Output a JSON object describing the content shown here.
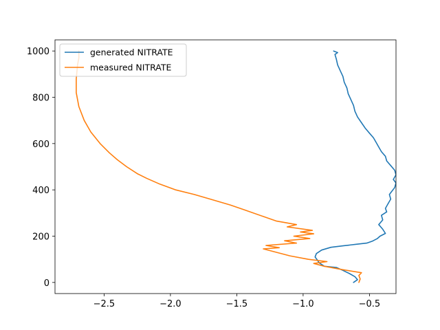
{
  "chart_data": {
    "type": "line",
    "title": "",
    "xlabel": "",
    "ylabel": "",
    "xlim": [
      -2.87,
      -0.3
    ],
    "ylim": [
      1048,
      -48
    ],
    "y_inverted": true,
    "grid": false,
    "legend": "top-left",
    "x_ticks": [
      -2.5,
      -2.0,
      -1.5,
      -1.0,
      -0.5
    ],
    "x_tick_labels": [
      "−2.5",
      "−2.0",
      "−1.5",
      "−1.0",
      "−0.5"
    ],
    "y_ticks": [
      0,
      200,
      400,
      600,
      800,
      1000
    ],
    "y_tick_labels": [
      "0",
      "200",
      "400",
      "600",
      "800",
      "1000"
    ],
    "series": [
      {
        "name": "generated NITRATE",
        "color": "#1f77b4",
        "points": [
          [
            -0.62,
            0
          ],
          [
            -0.59,
            12
          ],
          [
            -0.61,
            25
          ],
          [
            -0.65,
            38
          ],
          [
            -0.7,
            52
          ],
          [
            -0.75,
            65
          ],
          [
            -0.84,
            70
          ],
          [
            -0.88,
            85
          ],
          [
            -0.89,
            95
          ],
          [
            -0.91,
            110
          ],
          [
            -0.9,
            125
          ],
          [
            -0.86,
            140
          ],
          [
            -0.79,
            152
          ],
          [
            -0.7,
            158
          ],
          [
            -0.6,
            165
          ],
          [
            -0.52,
            170
          ],
          [
            -0.48,
            178
          ],
          [
            -0.44,
            190
          ],
          [
            -0.42,
            200
          ],
          [
            -0.38,
            212
          ],
          [
            -0.4,
            230
          ],
          [
            -0.43,
            250
          ],
          [
            -0.4,
            270
          ],
          [
            -0.41,
            290
          ],
          [
            -0.37,
            305
          ],
          [
            -0.38,
            320
          ],
          [
            -0.36,
            340
          ],
          [
            -0.34,
            360
          ],
          [
            -0.35,
            380
          ],
          [
            -0.33,
            395
          ],
          [
            -0.31,
            410
          ],
          [
            -0.3,
            430
          ],
          [
            -0.32,
            445
          ],
          [
            -0.3,
            465
          ],
          [
            -0.31,
            485
          ],
          [
            -0.34,
            505
          ],
          [
            -0.37,
            525
          ],
          [
            -0.38,
            545
          ],
          [
            -0.41,
            565
          ],
          [
            -0.43,
            585
          ],
          [
            -0.45,
            605
          ],
          [
            -0.47,
            625
          ],
          [
            -0.5,
            645
          ],
          [
            -0.53,
            665
          ],
          [
            -0.56,
            690
          ],
          [
            -0.59,
            715
          ],
          [
            -0.61,
            740
          ],
          [
            -0.62,
            765
          ],
          [
            -0.64,
            790
          ],
          [
            -0.66,
            815
          ],
          [
            -0.67,
            840
          ],
          [
            -0.69,
            865
          ],
          [
            -0.7,
            890
          ],
          [
            -0.72,
            915
          ],
          [
            -0.74,
            940
          ],
          [
            -0.75,
            965
          ],
          [
            -0.76,
            985
          ],
          [
            -0.74,
            993
          ],
          [
            -0.77,
            1000
          ]
        ]
      },
      {
        "name": "measured NITRATE",
        "color": "#ff7f0e",
        "points": [
          [
            -0.58,
            0
          ],
          [
            -0.57,
            15
          ],
          [
            -0.58,
            30
          ],
          [
            -0.56,
            42
          ],
          [
            -0.7,
            55
          ],
          [
            -0.84,
            70
          ],
          [
            -0.92,
            82
          ],
          [
            -0.82,
            90
          ],
          [
            -0.96,
            100
          ],
          [
            -1.1,
            115
          ],
          [
            -1.3,
            145
          ],
          [
            -1.18,
            150
          ],
          [
            -1.28,
            160
          ],
          [
            -1.05,
            170
          ],
          [
            -1.14,
            180
          ],
          [
            -0.95,
            190
          ],
          [
            -1.07,
            200
          ],
          [
            -0.92,
            210
          ],
          [
            -1.02,
            218
          ],
          [
            -0.93,
            225
          ],
          [
            -1.12,
            240
          ],
          [
            -1.05,
            250
          ],
          [
            -1.2,
            265
          ],
          [
            -1.3,
            285
          ],
          [
            -1.45,
            315
          ],
          [
            -1.55,
            335
          ],
          [
            -1.7,
            360
          ],
          [
            -1.82,
            380
          ],
          [
            -1.96,
            400
          ],
          [
            -2.08,
            425
          ],
          [
            -2.18,
            450
          ],
          [
            -2.25,
            470
          ],
          [
            -2.33,
            500
          ],
          [
            -2.4,
            530
          ],
          [
            -2.46,
            560
          ],
          [
            -2.53,
            600
          ],
          [
            -2.6,
            650
          ],
          [
            -2.65,
            700
          ],
          [
            -2.69,
            760
          ],
          [
            -2.71,
            820
          ],
          [
            -2.71,
            880
          ],
          [
            -2.7,
            940
          ],
          [
            -2.69,
            970
          ],
          [
            -2.69,
            1000
          ]
        ]
      }
    ]
  }
}
